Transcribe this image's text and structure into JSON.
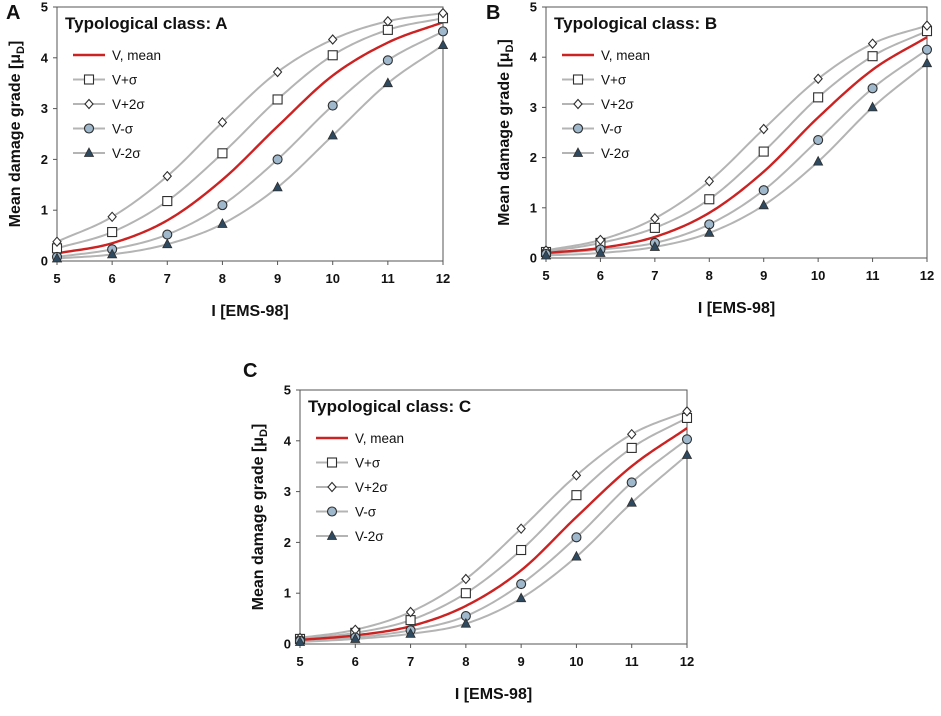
{
  "figure": {
    "y_axis_label": "Mean damage grade",
    "y_axis_unit": "[μD]",
    "y_axis_unit_main": "[μ",
    "y_axis_unit_sub": "D",
    "y_axis_unit_close": "]",
    "x_axis_label": "I [EMS-98]"
  },
  "legend_labels": [
    "V, mean",
    "V+σ",
    "V+2σ",
    "V-σ",
    "V-2σ"
  ],
  "colors": {
    "mean": "#cc2222",
    "band_line": "#b4b4b4",
    "marker_stroke": "#2e2e2e",
    "marker_fill_square": "#ffffff",
    "marker_fill_diamond": "#ffffff",
    "marker_fill_circle": "#9fb8cc",
    "marker_fill_triangle": "#2e4a60"
  },
  "chart_data": [
    {
      "panel": "A",
      "type": "line",
      "title": "Typological class: A",
      "xlabel": "I [EMS-98]",
      "ylabel": "Mean damage grade [μD]",
      "xlim": [
        5,
        12
      ],
      "ylim": [
        0,
        5
      ],
      "x": [
        5,
        6,
        7,
        8,
        9,
        10,
        11,
        12
      ],
      "series": [
        {
          "name": "V, mean",
          "marker": "none",
          "values": [
            0.15,
            0.35,
            0.8,
            1.6,
            2.65,
            3.65,
            4.3,
            4.7
          ]
        },
        {
          "name": "V+σ",
          "marker": "square",
          "values": [
            0.25,
            0.57,
            1.18,
            2.12,
            3.18,
            4.05,
            4.55,
            4.78
          ]
        },
        {
          "name": "V+2σ",
          "marker": "diamond",
          "values": [
            0.38,
            0.87,
            1.67,
            2.73,
            3.72,
            4.36,
            4.72,
            4.88
          ]
        },
        {
          "name": "V-σ",
          "marker": "circle",
          "values": [
            0.08,
            0.23,
            0.52,
            1.1,
            2.0,
            3.06,
            3.95,
            4.52
          ]
        },
        {
          "name": "V-2σ",
          "marker": "triangle",
          "values": [
            0.05,
            0.13,
            0.33,
            0.73,
            1.45,
            2.47,
            3.5,
            4.25
          ]
        }
      ]
    },
    {
      "panel": "B",
      "type": "line",
      "title": "Typological class: B",
      "xlabel": "I [EMS-98]",
      "ylabel": "Mean damage grade [μD]",
      "xlim": [
        5,
        12
      ],
      "ylim": [
        0,
        5
      ],
      "x": [
        5,
        6,
        7,
        8,
        9,
        10,
        11,
        12
      ],
      "series": [
        {
          "name": "V, mean",
          "marker": "none",
          "values": [
            0.1,
            0.2,
            0.42,
            0.9,
            1.72,
            2.8,
            3.75,
            4.4
          ]
        },
        {
          "name": "V+σ",
          "marker": "square",
          "values": [
            0.12,
            0.3,
            0.6,
            1.17,
            2.12,
            3.2,
            4.02,
            4.52
          ]
        },
        {
          "name": "V+2σ",
          "marker": "diamond",
          "values": [
            0.15,
            0.36,
            0.79,
            1.53,
            2.57,
            3.57,
            4.27,
            4.63
          ]
        },
        {
          "name": "V-σ",
          "marker": "circle",
          "values": [
            0.08,
            0.17,
            0.3,
            0.67,
            1.35,
            2.35,
            3.38,
            4.15
          ]
        },
        {
          "name": "V-2σ",
          "marker": "triangle",
          "values": [
            0.05,
            0.1,
            0.22,
            0.5,
            1.05,
            1.92,
            3.0,
            3.88
          ]
        }
      ]
    },
    {
      "panel": "C",
      "type": "line",
      "title": "Typological class: C",
      "xlabel": "I [EMS-98]",
      "ylabel": "Mean damage grade [μD]",
      "xlim": [
        5,
        12
      ],
      "ylim": [
        0,
        5
      ],
      "x": [
        5,
        6,
        7,
        8,
        9,
        10,
        11,
        12
      ],
      "series": [
        {
          "name": "V, mean",
          "marker": "none",
          "values": [
            0.08,
            0.17,
            0.35,
            0.75,
            1.45,
            2.5,
            3.5,
            4.25
          ]
        },
        {
          "name": "V+σ",
          "marker": "square",
          "values": [
            0.1,
            0.22,
            0.47,
            1.0,
            1.85,
            2.93,
            3.86,
            4.45
          ]
        },
        {
          "name": "V+2σ",
          "marker": "diamond",
          "values": [
            0.12,
            0.28,
            0.63,
            1.28,
            2.27,
            3.32,
            4.13,
            4.58
          ]
        },
        {
          "name": "V-σ",
          "marker": "circle",
          "values": [
            0.06,
            0.13,
            0.27,
            0.55,
            1.18,
            2.1,
            3.18,
            4.03
          ]
        },
        {
          "name": "V-2σ",
          "marker": "triangle",
          "values": [
            0.04,
            0.1,
            0.2,
            0.4,
            0.9,
            1.72,
            2.78,
            3.72
          ]
        }
      ]
    }
  ]
}
